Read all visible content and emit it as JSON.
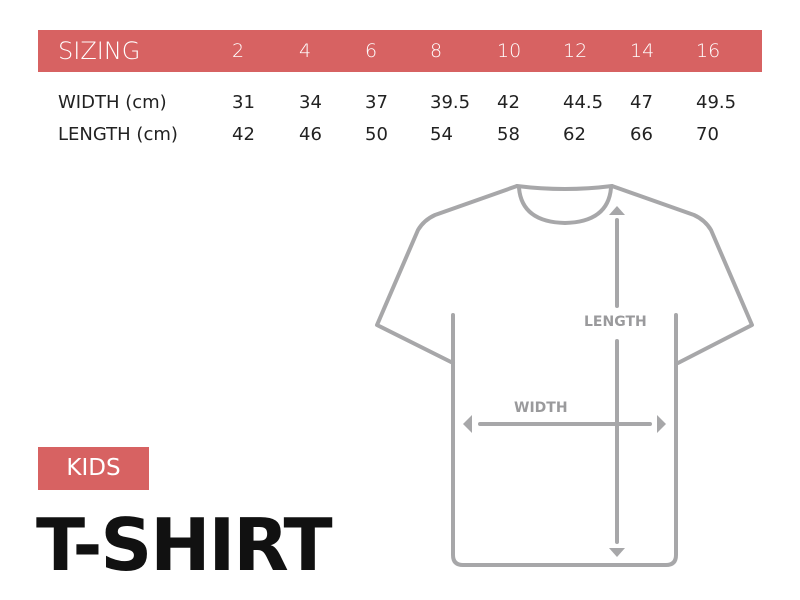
{
  "colors": {
    "accent": "#d76262",
    "outline": "#a7a7a9",
    "text": "#222222"
  },
  "table": {
    "title": "SIZING",
    "sizes": [
      "2",
      "4",
      "6",
      "8",
      "10",
      "12",
      "14",
      "16"
    ],
    "rows": [
      {
        "label": "WIDTH (cm)",
        "values": [
          "31",
          "34",
          "37",
          "39.5",
          "42",
          "44.5",
          "47",
          "49.5"
        ]
      },
      {
        "label": "LENGTH (cm)",
        "values": [
          "42",
          "46",
          "50",
          "54",
          "58",
          "62",
          "66",
          "70"
        ]
      }
    ]
  },
  "category": "KIDS",
  "product": "T-SHIRT",
  "diagram": {
    "length_label": "LENGTH",
    "width_label": "WIDTH"
  }
}
